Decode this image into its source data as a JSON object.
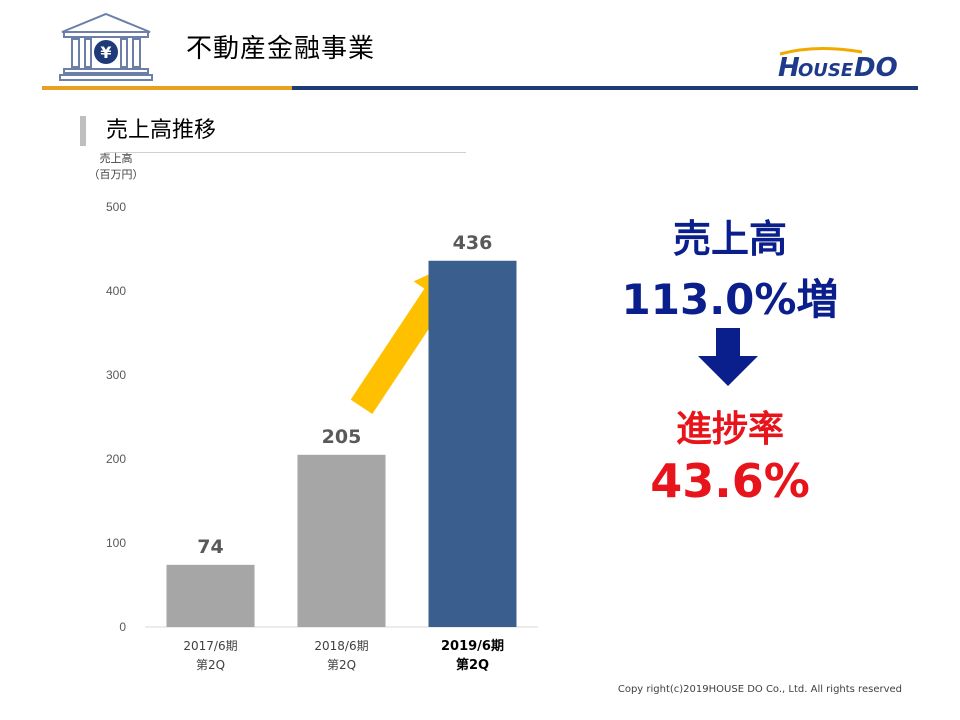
{
  "header": {
    "title": "不動産金融事業",
    "logo_text": "HOUSEDO"
  },
  "section": {
    "title": "売上高推移"
  },
  "chart_data": {
    "type": "bar",
    "ylabel_lines": [
      "売上高",
      "（百万円）"
    ],
    "ylim": [
      0,
      500
    ],
    "yticks": [
      0,
      100,
      200,
      300,
      400,
      500
    ],
    "grid": false,
    "categories": [
      {
        "line1": "2017/6期",
        "line2": "第2Q",
        "bold": false
      },
      {
        "line1": "2018/6期",
        "line2": "第2Q",
        "bold": false
      },
      {
        "line1": "2019/6期",
        "line2": "第2Q",
        "bold": true
      }
    ],
    "values": [
      74,
      205,
      436
    ],
    "value_labels": [
      "74",
      "205",
      "436"
    ],
    "colors": [
      "#A6A6A6",
      "#A6A6A6",
      "#3A5F8F"
    ]
  },
  "callout": {
    "label": "売上高",
    "growth": "113.0%増",
    "progress_label": "進捗率",
    "progress_value": "43.6%"
  },
  "colors": {
    "navy": "#0A1E8C",
    "red": "#E8141C",
    "arrow": "#FFC000",
    "rule_orange": "#E8A020",
    "rule_navy": "#1F3A78"
  },
  "footer": {
    "copyright": "Copy right(c)2019HOUSE DO Co., Ltd. All rights reserved"
  }
}
